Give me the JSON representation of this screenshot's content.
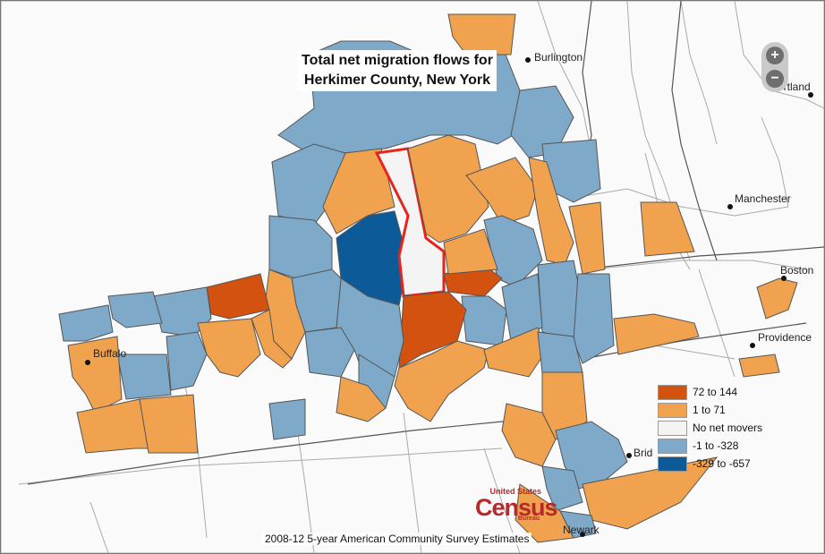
{
  "title_line1": "Total net migration flows for",
  "title_line2": "Herkimer County, New York",
  "zoom": {
    "in_label": "+",
    "out_label": "−"
  },
  "cities": {
    "burlington": "Burlington",
    "portland": "Portland",
    "manchester": "Manchester",
    "boston": "Boston",
    "providence": "Providence",
    "buffalo": "Buffalo",
    "bridgeport": "Brid",
    "newark": "Newark"
  },
  "legend": [
    {
      "label": "72 to 144",
      "color": "#d3520f"
    },
    {
      "label": "1 to 71",
      "color": "#f0a24f"
    },
    {
      "label": "No net movers",
      "color": "#f4f4f4"
    },
    {
      "label": "-1 to -328",
      "color": "#7ea9c9"
    },
    {
      "label": "-329 to -657",
      "color": "#0c5b98"
    }
  ],
  "logo": {
    "top": "United States",
    "word": "Census",
    "bottom": "Bureau"
  },
  "footer": "2008-12 5-year American Community Survey Estimates",
  "colors": {
    "orange_dark": "#d3520f",
    "orange": "#f0a24f",
    "none": "#f4f4f4",
    "blue": "#7ea9c9",
    "blue_dark": "#0c5b98",
    "highlight_border": "#e8231b"
  }
}
